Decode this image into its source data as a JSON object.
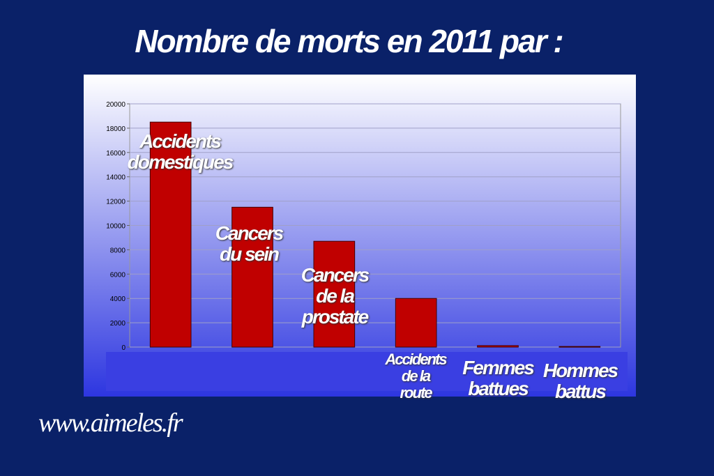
{
  "chart_data": {
    "type": "bar",
    "title": "Nombre de morts en 2011 par :",
    "categories": [
      "Accidents\ndomestiques",
      "Cancers\ndu sein",
      "Cancers\nde la\nprostate",
      "Accidents\nde la\nroute",
      "Femmes\nbattues",
      "Hommes\nbattus"
    ],
    "values": [
      18500,
      11500,
      8700,
      4000,
      120,
      50
    ],
    "color": "#c00000",
    "ylim": [
      0,
      20000
    ],
    "yticks": [
      0,
      2000,
      4000,
      6000,
      8000,
      10000,
      12000,
      14000,
      16000,
      18000,
      20000
    ],
    "grid": true
  },
  "footer": "www.aimeles.fr"
}
